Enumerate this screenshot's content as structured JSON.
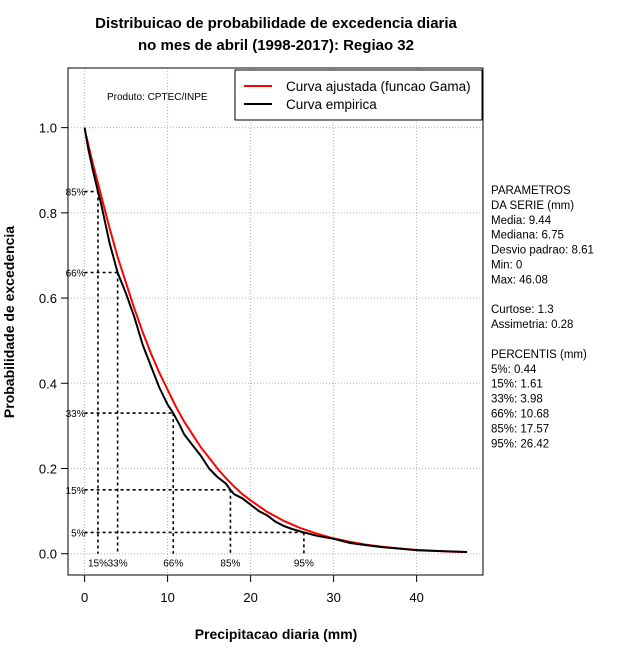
{
  "chart_data": {
    "type": "line",
    "title_line1": "Distribuicao de probabilidade de excedencia diaria",
    "title_line2": "no mes de abril (1998-2017): Regiao 32",
    "xlabel": "Precipitacao diaria (mm)",
    "ylabel": "Probabilidade de excedencia",
    "xlim": [
      -2,
      48
    ],
    "ylim": [
      -0.05,
      1.14
    ],
    "x_ticks": [
      0,
      10,
      20,
      30,
      40
    ],
    "y_ticks": [
      0.0,
      0.2,
      0.4,
      0.6,
      0.8,
      1.0
    ],
    "x_tick_labels": [
      "0",
      "10",
      "20",
      "30",
      "40"
    ],
    "y_tick_labels": [
      "0.0",
      "0.2",
      "0.4",
      "0.6",
      "0.8",
      "1.0"
    ],
    "grid": true,
    "product_label": "Produto: CPTEC/INPE",
    "legend": {
      "position": "top-right",
      "entries": [
        {
          "label": "Curva ajustada (funcao Gama)",
          "color": "#ff0000"
        },
        {
          "label": "Curva empirica",
          "color": "#000000"
        }
      ]
    },
    "series": [
      {
        "name": "Curva ajustada (funcao Gama)",
        "color": "#ff0000",
        "x": [
          0.2,
          1,
          2,
          3,
          4,
          5,
          6,
          7,
          8,
          9,
          10,
          11,
          12,
          13,
          14,
          15,
          16,
          17,
          18,
          19,
          20,
          22,
          24,
          26,
          28,
          30,
          32,
          34,
          36,
          38,
          40,
          42,
          44,
          46
        ],
        "y": [
          0.98,
          0.915,
          0.84,
          0.765,
          0.695,
          0.635,
          0.575,
          0.52,
          0.47,
          0.425,
          0.385,
          0.345,
          0.31,
          0.28,
          0.25,
          0.225,
          0.2,
          0.178,
          0.158,
          0.14,
          0.125,
          0.098,
          0.077,
          0.06,
          0.047,
          0.036,
          0.028,
          0.021,
          0.016,
          0.012,
          0.009,
          0.007,
          0.005,
          0.004
        ]
      },
      {
        "name": "Curva empirica",
        "color": "#000000",
        "x": [
          0,
          0.44,
          1,
          1.61,
          2,
          3,
          3.98,
          5,
          6,
          7,
          8,
          9,
          10,
          10.68,
          11.5,
          12,
          13,
          14,
          15,
          16,
          17,
          17.57,
          18,
          19,
          20,
          21,
          22,
          23,
          24,
          25,
          26.42,
          28,
          30,
          32,
          34,
          36,
          38,
          40,
          43,
          46.08
        ],
        "y": [
          1.0,
          0.95,
          0.9,
          0.85,
          0.82,
          0.73,
          0.66,
          0.61,
          0.555,
          0.49,
          0.44,
          0.39,
          0.35,
          0.33,
          0.3,
          0.28,
          0.255,
          0.23,
          0.2,
          0.18,
          0.165,
          0.15,
          0.14,
          0.13,
          0.115,
          0.1,
          0.09,
          0.075,
          0.065,
          0.058,
          0.05,
          0.042,
          0.035,
          0.025,
          0.02,
          0.015,
          0.012,
          0.008,
          0.006,
          0.004
        ]
      }
    ],
    "percentile_markers": [
      {
        "label_y": "85%",
        "label_x": "15%",
        "x": 1.61,
        "y": 0.85
      },
      {
        "label_y": "66%",
        "label_x": "33%",
        "x": 3.98,
        "y": 0.66
      },
      {
        "label_y": "33%",
        "label_x": "66%",
        "x": 10.68,
        "y": 0.33
      },
      {
        "label_y": "15%",
        "label_x": "85%",
        "x": 17.57,
        "y": 0.15
      },
      {
        "label_y": "5%",
        "label_x": "95%",
        "x": 26.42,
        "y": 0.05
      }
    ]
  },
  "stats": {
    "lines": [
      "PARAMETROS",
      "DA SERIE (mm)",
      "  Media: 9.44",
      "  Mediana: 6.75",
      "  Desvio padrao: 8.61",
      "  Min: 0",
      "  Max: 46.08",
      "",
      "Curtose: 1.3",
      "Assimetria: 0.28",
      "",
      "PERCENTIS (mm)",
      "  5%: 0.44",
      "  15%: 1.61",
      "  33%: 3.98",
      "  66%: 10.68",
      "  85%: 17.57",
      "  95%: 26.42"
    ]
  }
}
